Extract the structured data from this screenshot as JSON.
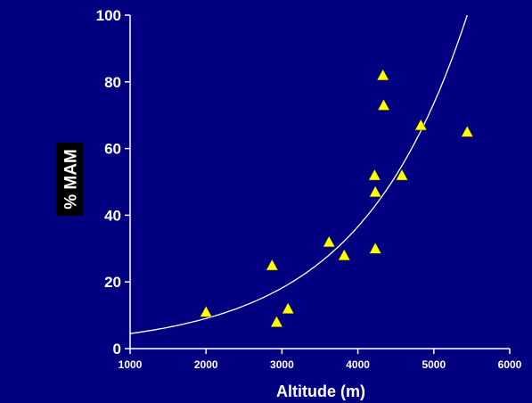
{
  "chart_data": {
    "type": "scatter",
    "title": "",
    "xlabel": "Altitude  (m)",
    "ylabel": "% MAM",
    "xlim": [
      1000,
      6000
    ],
    "ylim": [
      0,
      100
    ],
    "xticks": [
      "1000",
      "2000",
      "3000",
      "4000",
      "5000",
      "6000"
    ],
    "yticks": [
      "0",
      "20",
      "40",
      "60",
      "80",
      "100"
    ],
    "grid": false,
    "legend": "none",
    "series": [
      {
        "marker": "triangle",
        "color": "#ffff00",
        "points": [
          {
            "x": 2000,
            "y": 11
          },
          {
            "x": 2870,
            "y": 25
          },
          {
            "x": 2930,
            "y": 8
          },
          {
            "x": 3080,
            "y": 12
          },
          {
            "x": 3620,
            "y": 32
          },
          {
            "x": 3820,
            "y": 28
          },
          {
            "x": 4220,
            "y": 52
          },
          {
            "x": 4230,
            "y": 47
          },
          {
            "x": 4230,
            "y": 30
          },
          {
            "x": 4330,
            "y": 82
          },
          {
            "x": 4340,
            "y": 73
          },
          {
            "x": 4580,
            "y": 52
          },
          {
            "x": 4830,
            "y": 67
          },
          {
            "x": 5440,
            "y": 65
          }
        ]
      }
    ],
    "fit": {
      "type": "exponential",
      "color": "#ffffff",
      "points": [
        {
          "x": 1000,
          "y": 4.5
        },
        {
          "x": 2000,
          "y": 8.8
        },
        {
          "x": 3000,
          "y": 17.3
        },
        {
          "x": 4000,
          "y": 34
        },
        {
          "x": 5000,
          "y": 66
        },
        {
          "x": 5440,
          "y": 100
        }
      ]
    }
  },
  "colors": {
    "background": "#000080",
    "axis": "#ffffff",
    "marker": "#ffff00",
    "ylabel_box": "#000000"
  }
}
